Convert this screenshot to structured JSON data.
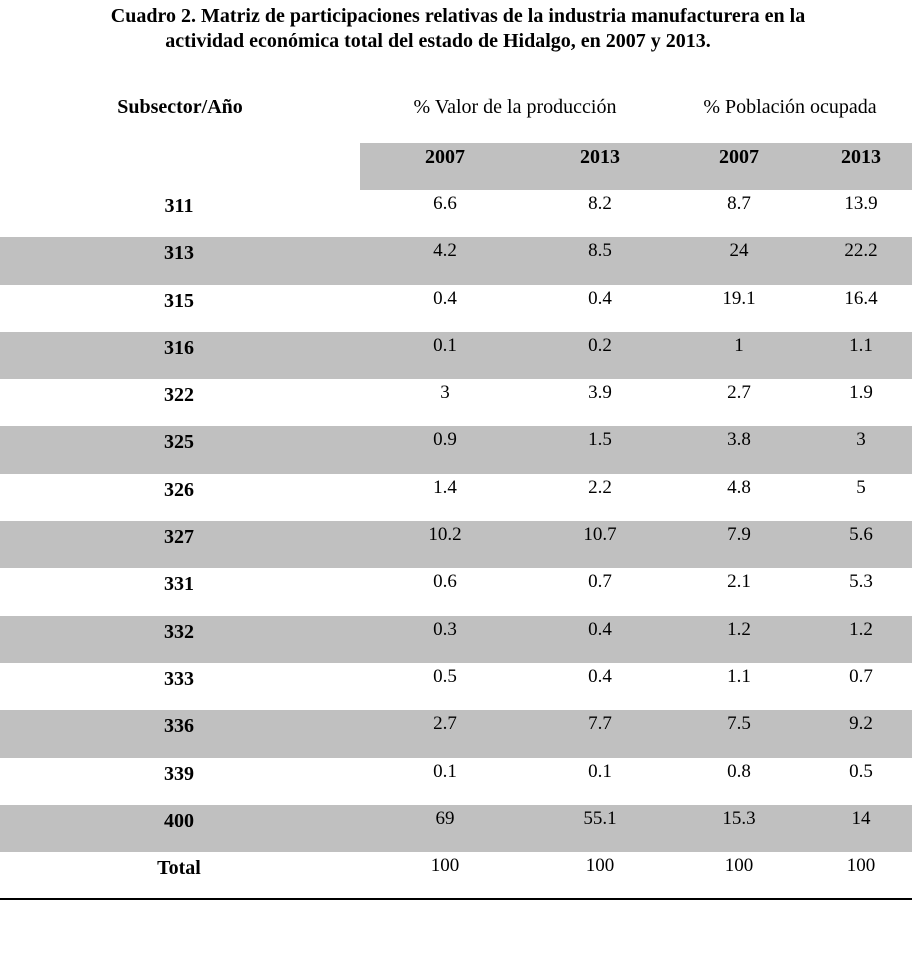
{
  "title": {
    "line1": "Cuadro 2. Matriz de participaciones relativas de la industria manufacturera en la",
    "line2": "actividad económica total del estado de Hidalgo, en 2007 y 2013."
  },
  "header": {
    "row_label": "Subsector/Año",
    "group1": "% Valor de la producción",
    "group2": "% Población ocupada",
    "years": [
      "2007",
      "2013",
      "2007",
      "2013"
    ]
  },
  "rows": [
    {
      "subsector": "311",
      "values": [
        "6.6",
        "8.2",
        "8.7",
        "13.9"
      ],
      "shaded": false
    },
    {
      "subsector": "313",
      "values": [
        "4.2",
        "8.5",
        "24",
        "22.2"
      ],
      "shaded": true
    },
    {
      "subsector": "315",
      "values": [
        "0.4",
        "0.4",
        "19.1",
        "16.4"
      ],
      "shaded": false
    },
    {
      "subsector": "316",
      "values": [
        "0.1",
        "0.2",
        "1",
        "1.1"
      ],
      "shaded": true
    },
    {
      "subsector": "322",
      "values": [
        "3",
        "3.9",
        "2.7",
        "1.9"
      ],
      "shaded": false
    },
    {
      "subsector": "325",
      "values": [
        "0.9",
        "1.5",
        "3.8",
        "3"
      ],
      "shaded": true
    },
    {
      "subsector": "326",
      "values": [
        "1.4",
        "2.2",
        "4.8",
        "5"
      ],
      "shaded": false
    },
    {
      "subsector": "327",
      "values": [
        "10.2",
        "10.7",
        "7.9",
        "5.6"
      ],
      "shaded": true
    },
    {
      "subsector": "331",
      "values": [
        "0.6",
        "0.7",
        "2.1",
        "5.3"
      ],
      "shaded": false
    },
    {
      "subsector": "332",
      "values": [
        "0.3",
        "0.4",
        "1.2",
        "1.2"
      ],
      "shaded": true
    },
    {
      "subsector": "333",
      "values": [
        "0.5",
        "0.4",
        "1.1",
        "0.7"
      ],
      "shaded": false
    },
    {
      "subsector": "336",
      "values": [
        "2.7",
        "7.7",
        "7.5",
        "9.2"
      ],
      "shaded": true
    },
    {
      "subsector": "339",
      "values": [
        "0.1",
        "0.1",
        "0.8",
        "0.5"
      ],
      "shaded": false
    },
    {
      "subsector": "400",
      "values": [
        "69",
        "55.1",
        "15.3",
        "14"
      ],
      "shaded": true
    },
    {
      "subsector": "Total",
      "values": [
        "100",
        "100",
        "100",
        "100"
      ],
      "shaded": false
    }
  ],
  "colors": {
    "shade": "#c0c0c0",
    "text": "#000000"
  }
}
